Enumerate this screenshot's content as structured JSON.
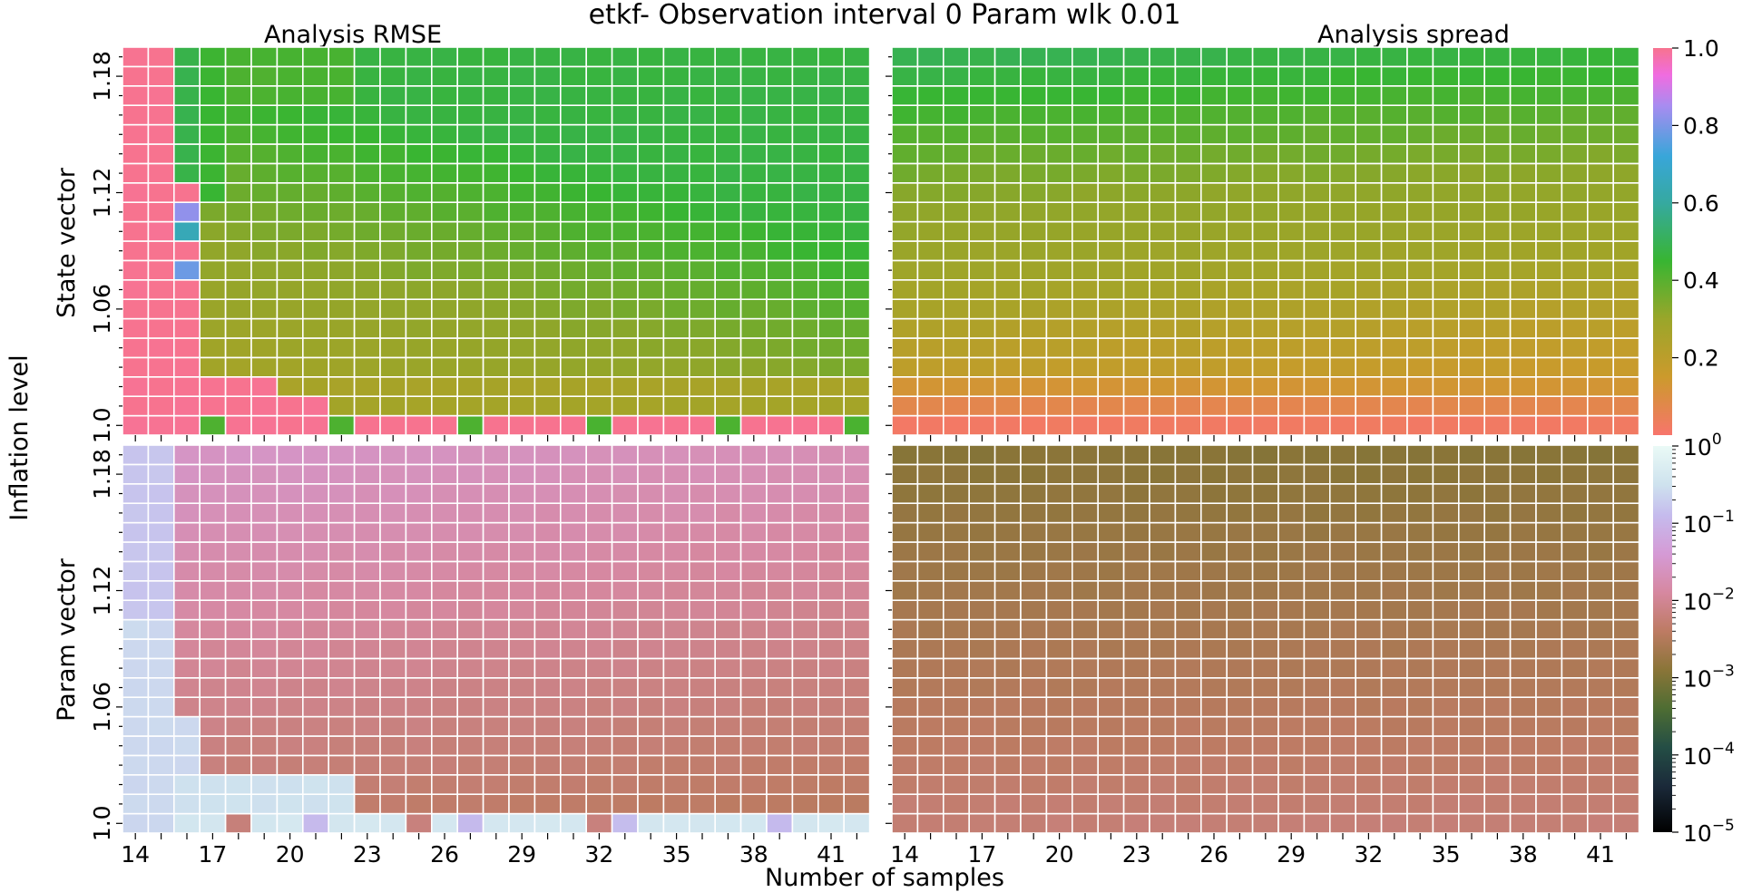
{
  "suptitle": "etkf- Observation interval 0 Param wlk 0.01",
  "shared": {
    "xlabel": "Number of samples",
    "ylabel": "Inflation level",
    "row_labels": [
      "State vector",
      "Param vector"
    ],
    "x_ticklabels": [
      "14",
      "17",
      "20",
      "23",
      "26",
      "29",
      "32",
      "35",
      "38",
      "41"
    ],
    "y_ticklabels": [
      "1.0",
      "1.06",
      "1.12",
      "1.18"
    ]
  },
  "colorbars": [
    {
      "scale": "linear",
      "ticks": [
        "0.2",
        "0.4",
        "0.6",
        "0.8",
        "1.0"
      ]
    },
    {
      "scale": "log",
      "ticks": [
        "10",
        "10",
        "10",
        "10",
        "10",
        "10"
      ],
      "exponents": [
        "−5",
        "−4",
        "−3",
        "−2",
        "−1",
        "0"
      ]
    }
  ],
  "chart_data": [
    {
      "type": "heatmap",
      "title": "Analysis RMSE",
      "ylabel": "State vector",
      "x": [
        14,
        42
      ],
      "y": [
        1.0,
        1.19
      ],
      "x_categories": "14 to 42 (ensemble size)",
      "y_categories": "1.00 to 1.19 step 0.01",
      "value_range": [
        0,
        1.0
      ],
      "summary": "values ~1.0 (pink) for 14-15 samples and at inflation 1.00-1.02; ~0.4 (green) at high inflation, ~0.25 (olive) for moderate inflation"
    },
    {
      "type": "heatmap",
      "title": "Analysis spread",
      "x": [
        14,
        42
      ],
      "y": [
        1.0,
        1.19
      ],
      "value_range": [
        0,
        1.0
      ],
      "summary": "~0.05 (red/orange) at inflation 1.00-1.01, increasing smoothly to ~0.45 (teal) at inflation 1.19"
    },
    {
      "type": "heatmap",
      "ylabel": "Param vector",
      "x": [
        14,
        42
      ],
      "y": [
        1.0,
        1.19
      ],
      "scale": "log",
      "value_range": [
        1e-05,
        1.0
      ],
      "summary": "~0.3 (pale) for 14-16 samples and at inflation 1.00-1.02; ~0.01 (pink) at high inflation, ~0.005 (brown) at low inflation"
    },
    {
      "type": "heatmap",
      "x": [
        14,
        42
      ],
      "y": [
        1.0,
        1.19
      ],
      "scale": "log",
      "value_range": [
        1e-05,
        1.0
      ],
      "summary": "~0.0015 (olive) at inflation 1.19 rising to ~0.006 (brown) at inflation 1.00"
    }
  ]
}
